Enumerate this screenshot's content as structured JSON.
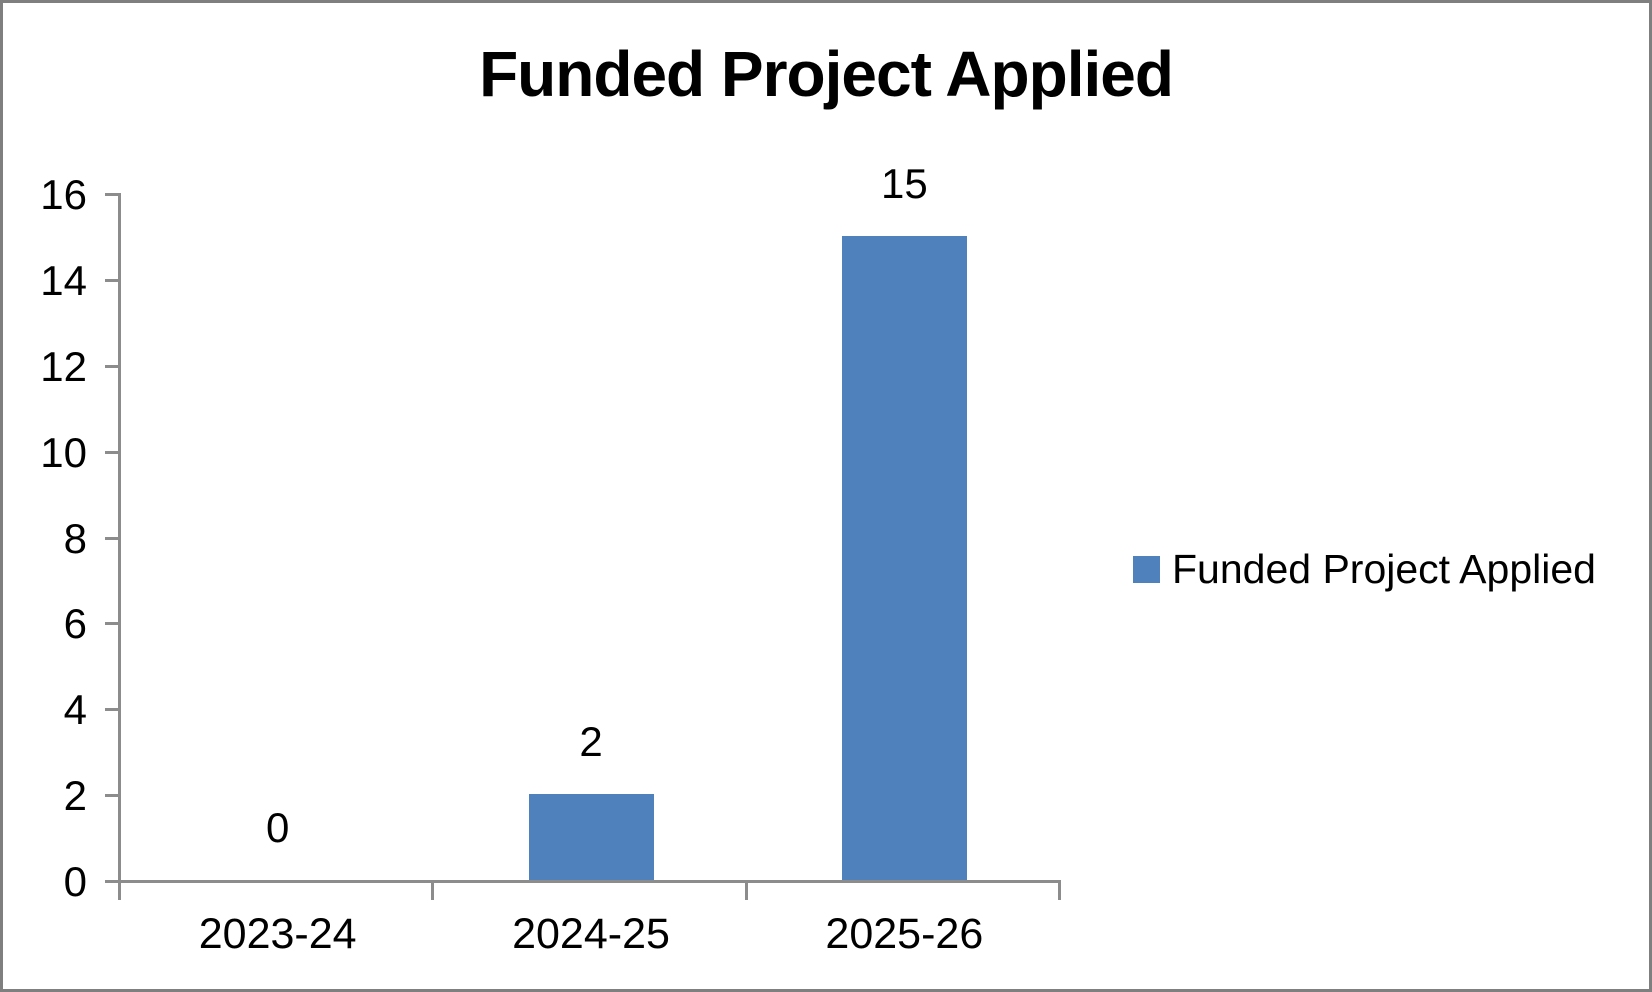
{
  "chart_data": {
    "type": "bar",
    "title": "Funded Project Applied",
    "categories": [
      "2023-24",
      "2024-25",
      "2025-26"
    ],
    "series": [
      {
        "name": "Funded Project Applied",
        "values": [
          0,
          2,
          15
        ]
      }
    ],
    "data_labels": [
      "0",
      "2",
      "15"
    ],
    "xlabel": "",
    "ylabel": "",
    "ylim": [
      0,
      16
    ],
    "yticks": [
      0,
      2,
      4,
      6,
      8,
      10,
      12,
      14,
      16
    ],
    "grid": false,
    "legend_position": "right",
    "colors": {
      "bar": "#4F81BD",
      "axis": "#8C8C8C",
      "text": "#000000",
      "frame_border": "#7F7F7F",
      "background": "#FFFFFF"
    }
  }
}
